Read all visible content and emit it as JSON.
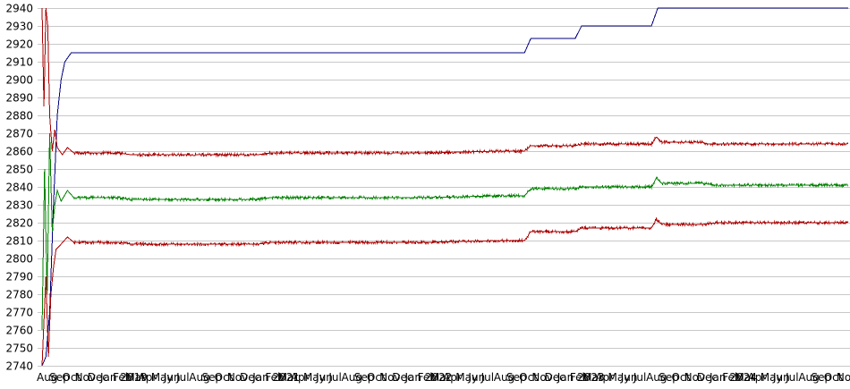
{
  "chart_data": {
    "type": "line",
    "title": "",
    "xlabel": "",
    "ylabel": "",
    "ylim": [
      2740,
      2940
    ],
    "yticks": [
      2740,
      2750,
      2760,
      2770,
      2780,
      2790,
      2800,
      2810,
      2820,
      2830,
      2840,
      2850,
      2860,
      2870,
      2880,
      2890,
      2900,
      2910,
      2920,
      2930,
      2940
    ],
    "grid": true,
    "legend": "none",
    "x_tick_labels": [
      "Aug",
      "Sep",
      "Oct",
      "Nov",
      "Dec",
      "Jan 2019",
      "Feb",
      "Mar",
      "Apr",
      "May",
      "Jun",
      "Jul",
      "Aug",
      "Sep",
      "Oct",
      "Nov",
      "Dec",
      "Jan 2021",
      "Feb",
      "Mar",
      "Apr",
      "May",
      "Jun",
      "Jul",
      "Aug",
      "Sep",
      "Oct",
      "Nov",
      "Dec",
      "Jan 2022",
      "Feb",
      "Mar",
      "Apr",
      "May",
      "Jun",
      "Jul",
      "Aug",
      "Sep",
      "Oct",
      "Nov",
      "Dec",
      "Jan 2023",
      "Feb",
      "Mar",
      "Apr",
      "May",
      "Jun",
      "Jul",
      "Aug",
      "Sep",
      "Oct",
      "Nov",
      "Dec",
      "Jan 2024",
      "Feb",
      "Mar",
      "Apr",
      "May",
      "Jun",
      "Jul",
      "Aug",
      "Sep",
      "Oct",
      "Nov"
    ],
    "x_index": [
      0,
      1,
      2,
      3,
      4,
      5,
      6,
      7,
      8,
      9,
      10,
      11,
      12,
      13,
      14,
      15,
      16,
      17,
      18,
      19,
      20,
      21,
      22,
      23,
      24,
      25,
      26,
      27,
      28,
      29,
      30,
      31,
      32,
      33,
      34,
      35,
      36,
      37,
      38,
      39,
      40,
      41,
      42,
      43,
      44,
      45,
      46,
      47,
      48,
      49,
      50,
      51,
      52,
      53,
      54,
      55,
      56,
      57,
      58,
      59,
      60,
      61,
      62,
      63
    ],
    "series": [
      {
        "color": "#000080",
        "points": [
          [
            0,
            2740
          ],
          [
            0.3,
            2745
          ],
          [
            0.6,
            2770
          ],
          [
            0.9,
            2830
          ],
          [
            1.2,
            2880
          ],
          [
            1.5,
            2900
          ],
          [
            1.8,
            2910
          ],
          [
            2.3,
            2915
          ],
          [
            38,
            2915
          ],
          [
            38.5,
            2923
          ],
          [
            42,
            2923
          ],
          [
            42.5,
            2930
          ],
          [
            48,
            2930
          ],
          [
            48.5,
            2940
          ],
          [
            63.5,
            2940
          ]
        ]
      },
      {
        "color": "#aa0000",
        "points": [
          [
            0,
            2940
          ],
          [
            0.15,
            2885
          ],
          [
            0.3,
            2940
          ],
          [
            0.45,
            2930
          ],
          [
            0.6,
            2880
          ],
          [
            0.8,
            2860
          ],
          [
            1,
            2872
          ],
          [
            1.2,
            2862
          ],
          [
            1.6,
            2858
          ],
          [
            2,
            2862
          ],
          [
            2.5,
            2859
          ],
          [
            6,
            2859
          ],
          [
            7,
            2858
          ],
          [
            17,
            2858
          ],
          [
            18,
            2859
          ],
          [
            30,
            2859
          ],
          [
            36,
            2860
          ],
          [
            38,
            2860
          ],
          [
            38.5,
            2863
          ],
          [
            42,
            2863
          ],
          [
            42.5,
            2864
          ],
          [
            48,
            2864
          ],
          [
            48.4,
            2868
          ],
          [
            48.8,
            2865
          ],
          [
            52,
            2865
          ],
          [
            52.5,
            2864
          ],
          [
            63.5,
            2864
          ]
        ]
      },
      {
        "color": "#008000",
        "points": [
          [
            0,
            2760
          ],
          [
            0.2,
            2850
          ],
          [
            0.4,
            2780
          ],
          [
            0.6,
            2870
          ],
          [
            0.8,
            2815
          ],
          [
            1,
            2830
          ],
          [
            1.2,
            2838
          ],
          [
            1.5,
            2832
          ],
          [
            2,
            2838
          ],
          [
            2.5,
            2834
          ],
          [
            6,
            2834
          ],
          [
            7,
            2833
          ],
          [
            17,
            2833
          ],
          [
            18,
            2834
          ],
          [
            30,
            2834
          ],
          [
            36,
            2835
          ],
          [
            38,
            2835
          ],
          [
            38.5,
            2839
          ],
          [
            42,
            2839
          ],
          [
            42.5,
            2840
          ],
          [
            48,
            2840
          ],
          [
            48.4,
            2845
          ],
          [
            48.8,
            2842
          ],
          [
            52,
            2842
          ],
          [
            53,
            2841
          ],
          [
            63.5,
            2841
          ]
        ]
      },
      {
        "color": "#aa0000",
        "points": [
          [
            0,
            2740
          ],
          [
            0.3,
            2790
          ],
          [
            0.5,
            2745
          ],
          [
            0.7,
            2780
          ],
          [
            0.9,
            2795
          ],
          [
            1.1,
            2805
          ],
          [
            1.5,
            2808
          ],
          [
            2,
            2812
          ],
          [
            2.5,
            2809
          ],
          [
            6,
            2809
          ],
          [
            7,
            2808
          ],
          [
            17,
            2808
          ],
          [
            18,
            2809
          ],
          [
            30,
            2809
          ],
          [
            36,
            2810
          ],
          [
            38,
            2810
          ],
          [
            38.5,
            2815
          ],
          [
            42,
            2815
          ],
          [
            42.5,
            2817
          ],
          [
            48,
            2817
          ],
          [
            48.4,
            2822
          ],
          [
            48.8,
            2819
          ],
          [
            52,
            2819
          ],
          [
            53,
            2820
          ],
          [
            63.5,
            2820
          ]
        ]
      }
    ]
  }
}
